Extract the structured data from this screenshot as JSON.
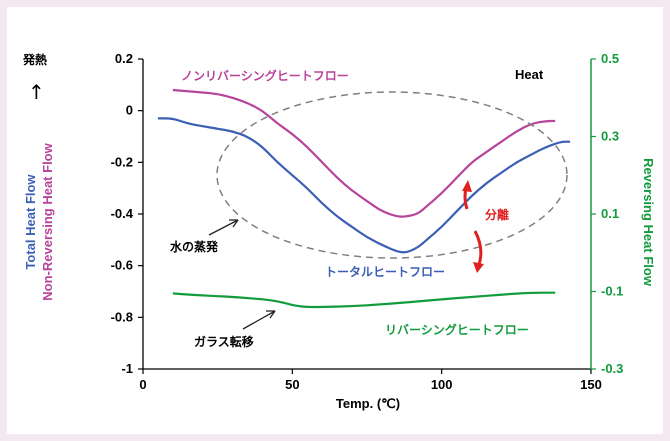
{
  "colors": {
    "outer_background": "#f5e9f1",
    "plot_background": "#ffffff",
    "total": "#3a5fb5",
    "non_reversing": "#b7439a",
    "reversing": "#129b3c",
    "separation_arrows": "#e02020",
    "dashed_ellipse": "#808080"
  },
  "chart_data": {
    "type": "line",
    "title": "",
    "xlabel": "Temp. (℃)",
    "xlim": [
      0,
      150
    ],
    "xticks": [
      0,
      50,
      100,
      150
    ],
    "ylabel_left": [
      "Total Heat Flow",
      "Non-Reversing Heat Flow"
    ],
    "ylim_left": [
      -1,
      0.2
    ],
    "yticks_left": [
      -1,
      -0.8,
      -0.6,
      -0.4,
      -0.2,
      0,
      0.2
    ],
    "ylabel_right": "Reversing Heat Flow",
    "ylim_right": [
      -0.3,
      0.5
    ],
    "yticks_right": [
      -0.3,
      -0.1,
      0.1,
      0.3,
      0.5
    ],
    "grid": false,
    "series": [
      {
        "name": "トータルヒートフロー",
        "axis": "left",
        "x": [
          5,
          10,
          15,
          20,
          25,
          30,
          35,
          40,
          45,
          50,
          55,
          60,
          65,
          70,
          75,
          80,
          85,
          88,
          92,
          95,
          100,
          105,
          110,
          115,
          120,
          125,
          130,
          135,
          140,
          143
        ],
        "y": [
          -0.03,
          -0.03,
          -0.05,
          -0.06,
          -0.07,
          -0.08,
          -0.1,
          -0.14,
          -0.2,
          -0.25,
          -0.3,
          -0.36,
          -0.41,
          -0.45,
          -0.49,
          -0.52,
          -0.545,
          -0.55,
          -0.53,
          -0.5,
          -0.45,
          -0.39,
          -0.33,
          -0.28,
          -0.24,
          -0.2,
          -0.17,
          -0.14,
          -0.12,
          -0.12
        ]
      },
      {
        "name": "ノンリバーシングヒートフロー",
        "axis": "left",
        "x": [
          10,
          15,
          20,
          25,
          30,
          35,
          40,
          45,
          50,
          55,
          60,
          65,
          70,
          75,
          80,
          85,
          88,
          92,
          95,
          100,
          105,
          110,
          115,
          120,
          125,
          130,
          135,
          138
        ],
        "y": [
          0.08,
          0.075,
          0.07,
          0.065,
          0.05,
          0.03,
          0.0,
          -0.05,
          -0.09,
          -0.14,
          -0.2,
          -0.26,
          -0.31,
          -0.35,
          -0.39,
          -0.41,
          -0.41,
          -0.4,
          -0.37,
          -0.32,
          -0.26,
          -0.2,
          -0.16,
          -0.12,
          -0.08,
          -0.05,
          -0.04,
          -0.04
        ]
      },
      {
        "name": "リバーシングヒートフロー",
        "axis": "right",
        "x": [
          10,
          15,
          20,
          25,
          30,
          35,
          40,
          45,
          50,
          52,
          55,
          60,
          70,
          80,
          90,
          100,
          110,
          120,
          130,
          138
        ],
        "y": [
          -0.105,
          -0.108,
          -0.11,
          -0.112,
          -0.114,
          -0.117,
          -0.12,
          -0.125,
          -0.135,
          -0.138,
          -0.14,
          -0.14,
          -0.138,
          -0.133,
          -0.127,
          -0.12,
          -0.114,
          -0.108,
          -0.103,
          -0.103
        ]
      }
    ],
    "annotations": {
      "heat_label": "発熱",
      "heat_arrow": "↑",
      "heat_legend": "Heat",
      "evaporation": "水の蒸発",
      "glass_transition": "ガラス転移",
      "separation": "分離"
    }
  }
}
